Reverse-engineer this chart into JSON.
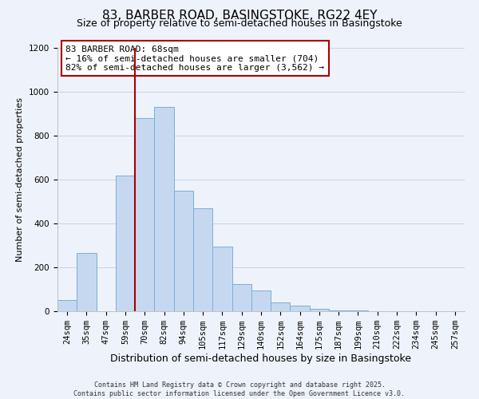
{
  "title": "83, BARBER ROAD, BASINGSTOKE, RG22 4EY",
  "subtitle": "Size of property relative to semi-detached houses in Basingstoke",
  "xlabel": "Distribution of semi-detached houses by size in Basingstoke",
  "ylabel": "Number of semi-detached properties",
  "bar_labels": [
    "24sqm",
    "35sqm",
    "47sqm",
    "59sqm",
    "70sqm",
    "82sqm",
    "94sqm",
    "105sqm",
    "117sqm",
    "129sqm",
    "140sqm",
    "152sqm",
    "164sqm",
    "175sqm",
    "187sqm",
    "199sqm",
    "210sqm",
    "222sqm",
    "234sqm",
    "245sqm",
    "257sqm"
  ],
  "bar_values": [
    50,
    265,
    0,
    620,
    880,
    930,
    550,
    470,
    295,
    125,
    95,
    40,
    25,
    12,
    5,
    5,
    0,
    0,
    0,
    0,
    0
  ],
  "bar_color": "#c5d8f0",
  "bar_edge_color": "#7bafd4",
  "vline_pos": 3.5,
  "vline_color": "#aa0000",
  "annotation_title": "83 BARBER ROAD: 68sqm",
  "annotation_line1": "← 16% of semi-detached houses are smaller (704)",
  "annotation_line2": "82% of semi-detached houses are larger (3,562) →",
  "annotation_box_facecolor": "#ffffff",
  "annotation_box_edgecolor": "#aa0000",
  "ylim": [
    0,
    1200
  ],
  "yticks": [
    0,
    200,
    400,
    600,
    800,
    1000,
    1200
  ],
  "footnote1": "Contains HM Land Registry data © Crown copyright and database right 2025.",
  "footnote2": "Contains public sector information licensed under the Open Government Licence v3.0.",
  "bg_color": "#eef2fa",
  "grid_color": "#c8d4e8",
  "title_fontsize": 11,
  "subtitle_fontsize": 9,
  "annotation_fontsize": 8,
  "ylabel_fontsize": 8,
  "xlabel_fontsize": 9,
  "tick_fontsize": 7.5,
  "footnote_fontsize": 6
}
